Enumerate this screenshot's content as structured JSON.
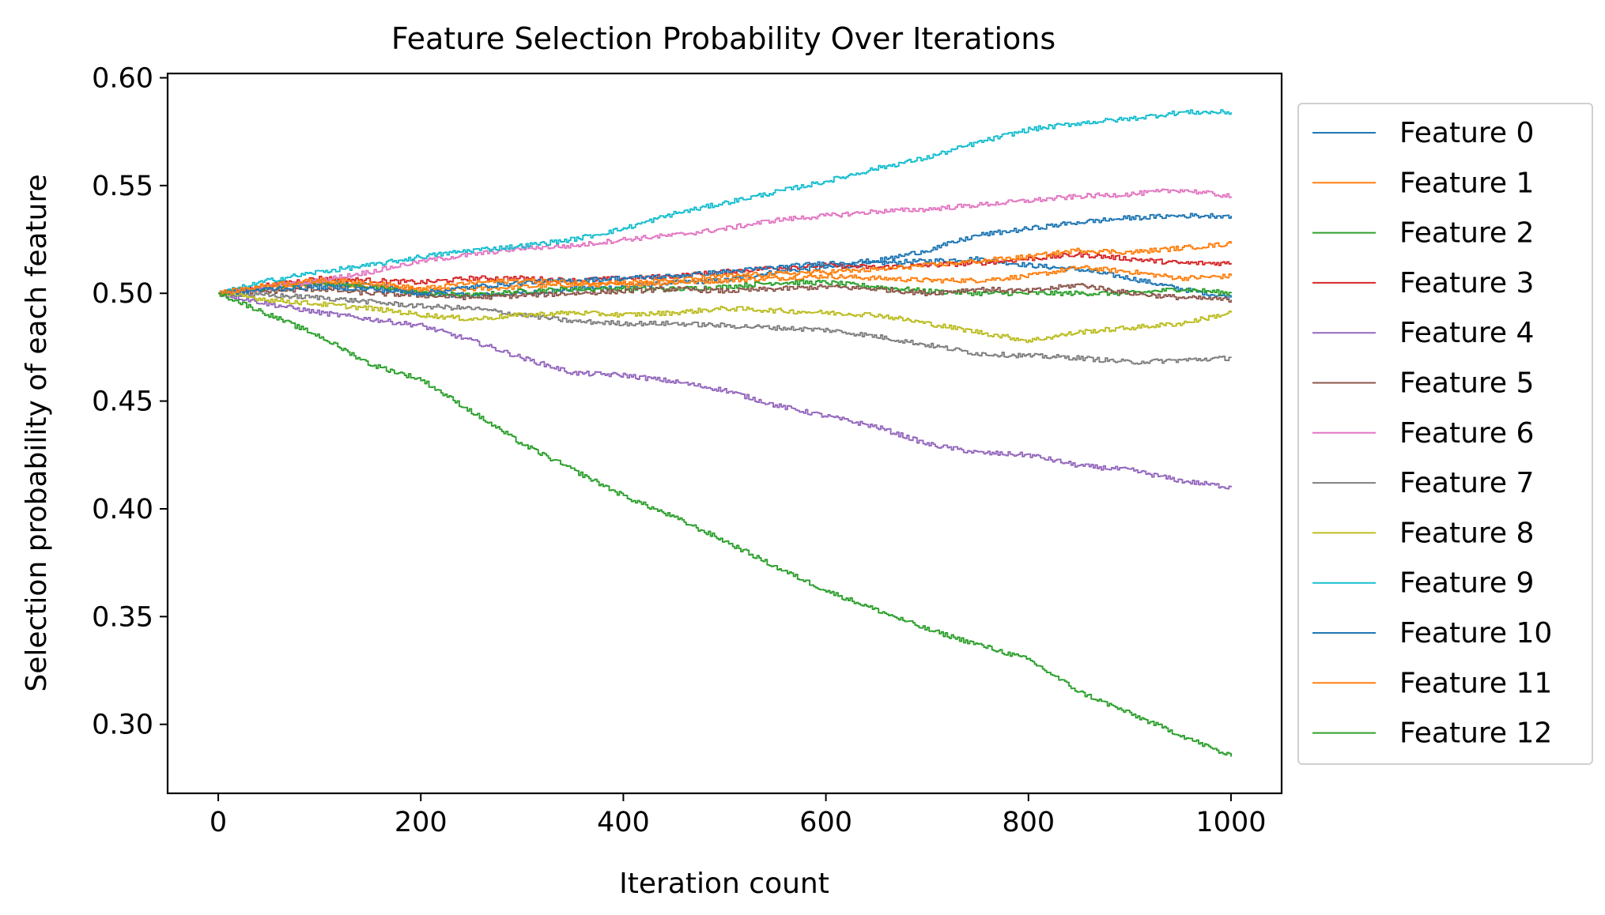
{
  "chart_data": {
    "type": "line",
    "title": "Feature Selection Probability Over Iterations",
    "xlabel": "Iteration count",
    "ylabel": "Selection probability of each feature",
    "xlim": [
      -50,
      1050
    ],
    "ylim": [
      0.268,
      0.602
    ],
    "xticks": [
      0,
      200,
      400,
      600,
      800,
      1000
    ],
    "xtick_labels": [
      "0",
      "200",
      "400",
      "600",
      "800",
      "1000"
    ],
    "yticks": [
      0.3,
      0.35,
      0.4,
      0.45,
      0.5,
      0.55,
      0.6
    ],
    "ytick_labels": [
      "0.30",
      "0.35",
      "0.40",
      "0.45",
      "0.50",
      "0.55",
      "0.60"
    ],
    "grid": false,
    "legend_position": "outside right",
    "x": [
      0,
      50,
      100,
      150,
      200,
      250,
      300,
      350,
      400,
      450,
      500,
      550,
      600,
      650,
      700,
      750,
      800,
      850,
      900,
      950,
      1000
    ],
    "series": [
      {
        "name": "Feature 0",
        "color": "#1f77b4",
        "values": [
          0.5,
          0.503,
          0.505,
          0.504,
          0.5,
          0.499,
          0.5,
          0.502,
          0.503,
          0.505,
          0.506,
          0.51,
          0.512,
          0.514,
          0.515,
          0.516,
          0.513,
          0.511,
          0.507,
          0.502,
          0.498
        ]
      },
      {
        "name": "Feature 1",
        "color": "#ff7f0e",
        "values": [
          0.5,
          0.502,
          0.504,
          0.503,
          0.501,
          0.502,
          0.503,
          0.504,
          0.504,
          0.505,
          0.506,
          0.507,
          0.508,
          0.507,
          0.506,
          0.506,
          0.508,
          0.512,
          0.51,
          0.507,
          0.508
        ]
      },
      {
        "name": "Feature 2",
        "color": "#2ca02c",
        "values": [
          0.5,
          0.503,
          0.505,
          0.503,
          0.5,
          0.499,
          0.501,
          0.502,
          0.502,
          0.502,
          0.503,
          0.505,
          0.505,
          0.503,
          0.501,
          0.5,
          0.5,
          0.5,
          0.5,
          0.502,
          0.5
        ]
      },
      {
        "name": "Feature 3",
        "color": "#d62728",
        "values": [
          0.5,
          0.504,
          0.507,
          0.506,
          0.505,
          0.507,
          0.507,
          0.506,
          0.507,
          0.508,
          0.51,
          0.512,
          0.513,
          0.512,
          0.513,
          0.514,
          0.516,
          0.518,
          0.516,
          0.514,
          0.514
        ]
      },
      {
        "name": "Feature 4",
        "color": "#9467bd",
        "values": [
          0.5,
          0.495,
          0.491,
          0.488,
          0.485,
          0.478,
          0.47,
          0.463,
          0.462,
          0.459,
          0.455,
          0.448,
          0.443,
          0.438,
          0.43,
          0.426,
          0.425,
          0.42,
          0.418,
          0.413,
          0.41
        ]
      },
      {
        "name": "Feature 5",
        "color": "#8c564b",
        "values": [
          0.5,
          0.501,
          0.502,
          0.5,
          0.499,
          0.498,
          0.499,
          0.5,
          0.501,
          0.502,
          0.501,
          0.502,
          0.503,
          0.502,
          0.5,
          0.502,
          0.501,
          0.504,
          0.5,
          0.498,
          0.497
        ]
      },
      {
        "name": "Feature 6",
        "color": "#e377c2",
        "values": [
          0.5,
          0.503,
          0.506,
          0.51,
          0.515,
          0.518,
          0.521,
          0.522,
          0.525,
          0.527,
          0.53,
          0.534,
          0.536,
          0.538,
          0.539,
          0.541,
          0.543,
          0.545,
          0.546,
          0.548,
          0.545
        ]
      },
      {
        "name": "Feature 7",
        "color": "#7f7f7f",
        "values": [
          0.5,
          0.499,
          0.498,
          0.496,
          0.494,
          0.493,
          0.49,
          0.487,
          0.486,
          0.486,
          0.485,
          0.484,
          0.483,
          0.48,
          0.476,
          0.472,
          0.471,
          0.47,
          0.468,
          0.469,
          0.47
        ]
      },
      {
        "name": "Feature 8",
        "color": "#bcbd22",
        "values": [
          0.5,
          0.497,
          0.495,
          0.493,
          0.49,
          0.488,
          0.49,
          0.491,
          0.49,
          0.491,
          0.493,
          0.492,
          0.491,
          0.49,
          0.486,
          0.482,
          0.478,
          0.482,
          0.484,
          0.486,
          0.491
        ]
      },
      {
        "name": "Feature 9",
        "color": "#17becf",
        "values": [
          0.5,
          0.506,
          0.51,
          0.513,
          0.517,
          0.52,
          0.522,
          0.525,
          0.53,
          0.537,
          0.542,
          0.547,
          0.552,
          0.558,
          0.563,
          0.57,
          0.576,
          0.579,
          0.581,
          0.584,
          0.584
        ]
      },
      {
        "name": "Feature 10",
        "color": "#1f77b4",
        "values": [
          0.5,
          0.502,
          0.503,
          0.502,
          0.5,
          0.503,
          0.505,
          0.506,
          0.507,
          0.508,
          0.51,
          0.512,
          0.514,
          0.515,
          0.52,
          0.527,
          0.53,
          0.533,
          0.535,
          0.536,
          0.536
        ]
      },
      {
        "name": "Feature 11",
        "color": "#ff7f0e",
        "values": [
          0.5,
          0.504,
          0.506,
          0.505,
          0.502,
          0.505,
          0.506,
          0.505,
          0.505,
          0.506,
          0.508,
          0.509,
          0.51,
          0.511,
          0.513,
          0.515,
          0.517,
          0.52,
          0.519,
          0.521,
          0.523
        ]
      },
      {
        "name": "Feature 12",
        "color": "#2ca02c",
        "values": [
          0.5,
          0.49,
          0.48,
          0.467,
          0.46,
          0.445,
          0.43,
          0.418,
          0.406,
          0.396,
          0.385,
          0.373,
          0.362,
          0.353,
          0.344,
          0.337,
          0.33,
          0.315,
          0.305,
          0.295,
          0.285
        ]
      }
    ]
  }
}
